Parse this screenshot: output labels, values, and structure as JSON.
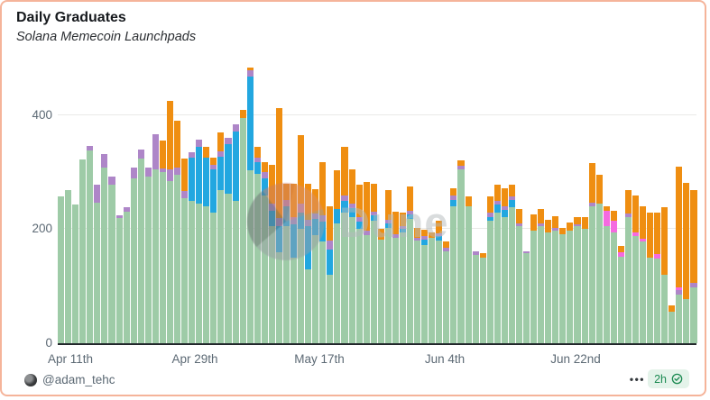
{
  "header": {
    "title": "Daily Graduates",
    "subtitle": "Solana Memecoin Launchpads"
  },
  "watermark": {
    "text": "Dune"
  },
  "footer": {
    "handle": "@adam_tehc",
    "menu": "•••",
    "badge_label": "2h"
  },
  "colors": {
    "accent_border": "#f5b49a",
    "badge_bg": "#e4f3ea",
    "badge_text": "#1c8a52",
    "axis_text": "#5c6974",
    "baseline": "#23282c",
    "gridline": "#e9e9e7"
  },
  "chart_data": {
    "type": "bar",
    "stacked": true,
    "title": "Daily Graduates",
    "subtitle": "Solana Memecoin Launchpads",
    "xlabel": "",
    "ylabel": "",
    "ylim": [
      0,
      490
    ],
    "yticks": [
      0,
      200,
      400
    ],
    "grid": "horizontal",
    "legend": "none",
    "xticks": [
      {
        "label": "Apr 11th",
        "x": 76
      },
      {
        "label": "Apr 29th",
        "x": 214
      },
      {
        "label": "May 17th",
        "x": 352
      },
      {
        "label": "Jun 4th",
        "x": 491
      },
      {
        "label": "Jun 22nd",
        "x": 636
      }
    ],
    "series_order": [
      "green",
      "blue",
      "purple",
      "pink",
      "orange"
    ],
    "series_colors": {
      "green": "#9ecba7",
      "blue": "#22a7e0",
      "purple": "#ae86c8",
      "pink": "#f56ae0",
      "orange": "#ef8e11"
    },
    "columns": [
      "date",
      "green",
      "blue",
      "purple",
      "pink",
      "orange"
    ],
    "bars": [
      [
        "Apr 11",
        258,
        0,
        0,
        0,
        0
      ],
      [
        "Apr 12",
        268,
        0,
        0,
        0,
        0
      ],
      [
        "Apr 13",
        243,
        0,
        0,
        0,
        0
      ],
      [
        "Apr 14",
        322,
        0,
        0,
        0,
        0
      ],
      [
        "Apr 15",
        338,
        0,
        8,
        0,
        0
      ],
      [
        "Apr 16",
        246,
        0,
        32,
        0,
        0
      ],
      [
        "Apr 17",
        308,
        0,
        24,
        0,
        0
      ],
      [
        "Apr 18",
        278,
        0,
        15,
        0,
        0
      ],
      [
        "Apr 19",
        220,
        0,
        4,
        0,
        0
      ],
      [
        "Apr 20",
        231,
        0,
        7,
        0,
        0
      ],
      [
        "Apr 21",
        290,
        0,
        18,
        0,
        0
      ],
      [
        "Apr 22",
        324,
        0,
        16,
        0,
        0
      ],
      [
        "Apr 23",
        292,
        0,
        16,
        0,
        0
      ],
      [
        "Apr 24",
        305,
        0,
        62,
        0,
        0
      ],
      [
        "Apr 25",
        300,
        0,
        6,
        0,
        50
      ],
      [
        "Apr 26",
        285,
        0,
        20,
        0,
        120
      ],
      [
        "Apr 27",
        296,
        0,
        12,
        0,
        82
      ],
      [
        "Apr 28",
        255,
        0,
        12,
        0,
        57
      ],
      [
        "Apr 29",
        250,
        75,
        10,
        0,
        0
      ],
      [
        "Apr 30",
        245,
        100,
        12,
        0,
        0
      ],
      [
        "May 1",
        240,
        85,
        0,
        0,
        20
      ],
      [
        "May 2",
        230,
        75,
        8,
        0,
        12
      ],
      [
        "May 3",
        268,
        60,
        8,
        0,
        34
      ],
      [
        "May 4",
        263,
        87,
        10,
        0,
        0
      ],
      [
        "May 5",
        250,
        121,
        13,
        0,
        0
      ],
      [
        "May 6",
        395,
        0,
        0,
        0,
        15
      ],
      [
        "May 7",
        303,
        165,
        11,
        0,
        5
      ],
      [
        "May 8",
        297,
        20,
        8,
        0,
        20
      ],
      [
        "May 9",
        260,
        30,
        10,
        0,
        18
      ],
      [
        "May 10",
        205,
        28,
        12,
        0,
        68
      ],
      [
        "May 11",
        160,
        45,
        15,
        0,
        193
      ],
      [
        "May 12",
        205,
        35,
        12,
        0,
        28
      ],
      [
        "May 13",
        150,
        58,
        14,
        0,
        58
      ],
      [
        "May 14",
        200,
        30,
        15,
        0,
        120
      ],
      [
        "May 15",
        130,
        75,
        12,
        0,
        63
      ],
      [
        "May 16",
        190,
        28,
        10,
        0,
        42
      ],
      [
        "May 17",
        178,
        35,
        12,
        0,
        92
      ],
      [
        "May 18",
        120,
        45,
        15,
        0,
        60
      ],
      [
        "May 19",
        210,
        25,
        0,
        0,
        68
      ],
      [
        "May 20",
        230,
        20,
        10,
        0,
        85
      ],
      [
        "May 21",
        222,
        15,
        8,
        0,
        60
      ],
      [
        "May 22",
        201,
        12,
        8,
        0,
        58
      ],
      [
        "May 23",
        190,
        0,
        8,
        0,
        85
      ],
      [
        "May 24",
        215,
        10,
        6,
        0,
        49
      ],
      [
        "May 25",
        182,
        0,
        0,
        0,
        18
      ],
      [
        "May 26",
        203,
        8,
        6,
        0,
        52
      ],
      [
        "May 27",
        185,
        0,
        6,
        0,
        40
      ],
      [
        "May 28",
        195,
        6,
        5,
        0,
        24
      ],
      [
        "May 29",
        218,
        8,
        6,
        0,
        43
      ],
      [
        "May 30",
        180,
        0,
        5,
        0,
        18
      ],
      [
        "May 31",
        172,
        10,
        6,
        0,
        12
      ],
      [
        "Jun 1",
        185,
        0,
        0,
        0,
        10
      ],
      [
        "Jun 2",
        180,
        8,
        5,
        0,
        22
      ],
      [
        "Jun 3",
        162,
        0,
        5,
        0,
        12
      ],
      [
        "Jun 4",
        240,
        12,
        8,
        0,
        12
      ],
      [
        "Jun 5",
        305,
        0,
        6,
        0,
        10
      ],
      [
        "Jun 6",
        240,
        0,
        0,
        0,
        18
      ],
      [
        "Jun 7",
        155,
        0,
        6,
        0,
        0
      ],
      [
        "Jun 8",
        150,
        0,
        0,
        0,
        8
      ],
      [
        "Jun 9",
        215,
        6,
        8,
        0,
        28
      ],
      [
        "Jun 10",
        230,
        14,
        6,
        0,
        28
      ],
      [
        "Jun 11",
        222,
        12,
        6,
        0,
        32
      ],
      [
        "Jun 12",
        238,
        14,
        6,
        0,
        20
      ],
      [
        "Jun 13",
        205,
        0,
        6,
        0,
        24
      ],
      [
        "Jun 14",
        158,
        0,
        4,
        0,
        0
      ],
      [
        "Jun 15",
        198,
        0,
        0,
        0,
        28
      ],
      [
        "Jun 16",
        205,
        0,
        5,
        0,
        25
      ],
      [
        "Jun 17",
        195,
        0,
        0,
        0,
        22
      ],
      [
        "Jun 18",
        198,
        0,
        5,
        0,
        20
      ],
      [
        "Jun 19",
        192,
        0,
        0,
        0,
        10
      ],
      [
        "Jun 20",
        198,
        0,
        0,
        0,
        14
      ],
      [
        "Jun 21",
        205,
        0,
        4,
        0,
        12
      ],
      [
        "Jun 22",
        200,
        0,
        0,
        0,
        22
      ],
      [
        "Jun 23",
        240,
        0,
        6,
        0,
        70
      ],
      [
        "Jun 24",
        245,
        0,
        0,
        0,
        50
      ],
      [
        "Jun 25",
        205,
        0,
        0,
        28,
        8
      ],
      [
        "Jun 26",
        195,
        0,
        0,
        20,
        18
      ],
      [
        "Jun 27",
        152,
        0,
        0,
        8,
        10
      ],
      [
        "Jun 28",
        222,
        0,
        5,
        0,
        42
      ],
      [
        "Jun 29",
        188,
        0,
        0,
        6,
        66
      ],
      [
        "Jun 30",
        178,
        0,
        0,
        5,
        57
      ],
      [
        "Jul 1",
        150,
        0,
        0,
        0,
        80
      ],
      [
        "Jul 2",
        148,
        0,
        0,
        8,
        74
      ],
      [
        "Jul 3",
        120,
        0,
        0,
        0,
        118
      ],
      [
        "Jul 4",
        55,
        0,
        0,
        0,
        12
      ],
      [
        "Jul 5",
        85,
        0,
        8,
        5,
        212
      ],
      [
        "Jul 6",
        78,
        0,
        0,
        0,
        203
      ],
      [
        "Jul 7",
        98,
        0,
        8,
        0,
        162
      ]
    ]
  }
}
